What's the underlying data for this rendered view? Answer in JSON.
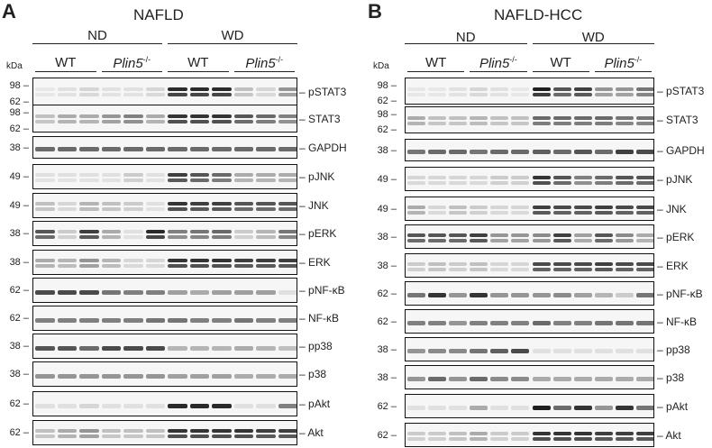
{
  "panels": [
    {
      "letter": "A",
      "title": "NAFLD",
      "diets": [
        "ND",
        "WD"
      ],
      "genotypes": [
        {
          "name": "WT",
          "sup": ""
        },
        {
          "name": "Plin5",
          "sup": "-/-"
        },
        {
          "name": "WT",
          "sup": ""
        },
        {
          "name": "Plin5",
          "sup": "-/-"
        }
      ],
      "kda_label": "kDa",
      "blots": [
        {
          "label": "pSTAT3",
          "markers": [
            "98",
            "62"
          ],
          "intensity": [
            0.02,
            0.05,
            0.1,
            0.05,
            0.05,
            0.1,
            0.9,
            0.9,
            0.9,
            0.2,
            0.1,
            0.4
          ]
        },
        {
          "label": "STAT3",
          "markers": [
            "98",
            "62"
          ],
          "intensity": [
            0.2,
            0.3,
            0.3,
            0.4,
            0.5,
            0.3,
            0.85,
            0.85,
            0.85,
            0.7,
            0.6,
            0.5
          ]
        },
        {
          "label": "GAPDH",
          "markers": [
            "38"
          ],
          "intensity": [
            0.6,
            0.6,
            0.6,
            0.6,
            0.6,
            0.6,
            0.6,
            0.6,
            0.6,
            0.6,
            0.6,
            0.6
          ]
        },
        {
          "label": "pJNK",
          "markers": [
            "49"
          ],
          "intensity": [
            0.05,
            0.05,
            0.05,
            0.05,
            0.15,
            0.05,
            0.8,
            0.7,
            0.6,
            0.3,
            0.3,
            0.3
          ]
        },
        {
          "label": "JNK",
          "markers": [
            "49"
          ],
          "intensity": [
            0.2,
            0.1,
            0.25,
            0.2,
            0.15,
            0.05,
            0.85,
            0.8,
            0.8,
            0.7,
            0.7,
            0.7
          ]
        },
        {
          "label": "pERK",
          "markers": [
            "38"
          ],
          "intensity": [
            0.7,
            0.15,
            0.8,
            0.3,
            0.05,
            0.9,
            0.5,
            0.55,
            0.6,
            0.15,
            0.25,
            0.55
          ]
        },
        {
          "label": "ERK",
          "markers": [
            "38"
          ],
          "intensity": [
            0.3,
            0.25,
            0.4,
            0.25,
            0.1,
            0.1,
            0.85,
            0.85,
            0.85,
            0.8,
            0.8,
            0.8
          ]
        },
        {
          "label": "pNF-κB",
          "markers": [
            "62"
          ],
          "intensity": [
            0.75,
            0.75,
            0.75,
            0.55,
            0.5,
            0.5,
            0.35,
            0.3,
            0.35,
            0.35,
            0.35,
            0.05
          ]
        },
        {
          "label": "NF-κB",
          "markers": [
            "62"
          ],
          "intensity": [
            0.5,
            0.5,
            0.5,
            0.5,
            0.5,
            0.55,
            0.55,
            0.5,
            0.5,
            0.55,
            0.5,
            0.5
          ]
        },
        {
          "label": "pp38",
          "markers": [
            "38"
          ],
          "intensity": [
            0.7,
            0.7,
            0.6,
            0.75,
            0.75,
            0.75,
            0.25,
            0.25,
            0.25,
            0.3,
            0.25,
            0.2
          ]
        },
        {
          "label": "p38",
          "markers": [
            "38"
          ],
          "intensity": [
            0.4,
            0.4,
            0.4,
            0.4,
            0.4,
            0.4,
            0.35,
            0.35,
            0.35,
            0.3,
            0.3,
            0.3
          ]
        },
        {
          "label": "pAkt",
          "markers": [
            "62"
          ],
          "intensity": [
            0.05,
            0.05,
            0.1,
            0.05,
            0.05,
            0.05,
            0.9,
            0.9,
            0.9,
            0.05,
            0.05,
            0.5
          ]
        },
        {
          "label": "Akt",
          "markers": [
            "62"
          ],
          "intensity": [
            0.2,
            0.3,
            0.4,
            0.2,
            0.2,
            0.2,
            0.85,
            0.85,
            0.85,
            0.85,
            0.8,
            0.8
          ]
        }
      ]
    },
    {
      "letter": "B",
      "title": "NAFLD-HCC",
      "diets": [
        "ND",
        "WD"
      ],
      "genotypes": [
        {
          "name": "WT",
          "sup": ""
        },
        {
          "name": "Plin5",
          "sup": "-/-"
        },
        {
          "name": "WT",
          "sup": ""
        },
        {
          "name": "Plin5",
          "sup": "-/-"
        }
      ],
      "kda_label": "kDa",
      "blots": [
        {
          "label": "pSTAT3",
          "markers": [
            "98",
            "62"
          ],
          "intensity": [
            0.02,
            0.02,
            0.05,
            0.1,
            0.05,
            0.02,
            0.95,
            0.7,
            0.8,
            0.4,
            0.4,
            0.55
          ]
        },
        {
          "label": "STAT3",
          "markers": [
            "98",
            "62"
          ],
          "intensity": [
            0.3,
            0.2,
            0.2,
            0.25,
            0.2,
            0.2,
            0.6,
            0.6,
            0.6,
            0.6,
            0.55,
            0.55
          ]
        },
        {
          "label": "GAPDH",
          "markers": [
            "38"
          ],
          "intensity": [
            0.55,
            0.6,
            0.6,
            0.55,
            0.6,
            0.6,
            0.65,
            0.6,
            0.7,
            0.6,
            0.8,
            0.75
          ]
        },
        {
          "label": "pJNK",
          "markers": [
            "49"
          ],
          "intensity": [
            0.1,
            0.1,
            0.1,
            0.1,
            0.15,
            0.15,
            0.85,
            0.7,
            0.5,
            0.6,
            0.7,
            0.7
          ]
        },
        {
          "label": "JNK",
          "markers": [
            "49"
          ],
          "intensity": [
            0.3,
            0.1,
            0.2,
            0.15,
            0.1,
            0.1,
            0.8,
            0.75,
            0.75,
            0.8,
            0.75,
            0.75
          ]
        },
        {
          "label": "pERK",
          "markers": [
            "38"
          ],
          "intensity": [
            0.7,
            0.7,
            0.7,
            0.8,
            0.4,
            0.4,
            0.45,
            0.8,
            0.35,
            0.7,
            0.45,
            0.3
          ]
        },
        {
          "label": "ERK",
          "markers": [
            "38"
          ],
          "intensity": [
            0.15,
            0.2,
            0.15,
            0.2,
            0.1,
            0.1,
            0.75,
            0.75,
            0.75,
            0.8,
            0.75,
            0.75
          ]
        },
        {
          "label": "pNF-κB",
          "markers": [
            "62"
          ],
          "intensity": [
            0.55,
            0.85,
            0.4,
            0.85,
            0.4,
            0.4,
            0.4,
            0.45,
            0.35,
            0.25,
            0.15,
            0.55
          ]
        },
        {
          "label": "NF-κB",
          "markers": [
            "62"
          ],
          "intensity": [
            0.5,
            0.5,
            0.4,
            0.5,
            0.5,
            0.5,
            0.6,
            0.5,
            0.5,
            0.55,
            0.55,
            0.55
          ]
        },
        {
          "label": "pp38",
          "markers": [
            "38"
          ],
          "intensity": [
            0.4,
            0.45,
            0.45,
            0.55,
            0.65,
            0.75,
            0.05,
            0.05,
            0.05,
            0.05,
            0.05,
            0.05
          ]
        },
        {
          "label": "p38",
          "markers": [
            "38"
          ],
          "intensity": [
            0.4,
            0.6,
            0.4,
            0.6,
            0.45,
            0.45,
            0.3,
            0.3,
            0.3,
            0.3,
            0.3,
            0.3
          ]
        },
        {
          "label": "pAkt",
          "markers": [
            "62"
          ],
          "intensity": [
            0.05,
            0.05,
            0.05,
            0.3,
            0.05,
            0.05,
            0.95,
            0.6,
            0.85,
            0.4,
            0.85,
            0.55
          ]
        },
        {
          "label": "Akt",
          "markers": [
            "62"
          ],
          "intensity": [
            0.15,
            0.15,
            0.2,
            0.3,
            0.15,
            0.15,
            0.85,
            0.85,
            0.85,
            0.8,
            0.8,
            0.8
          ]
        }
      ]
    }
  ]
}
